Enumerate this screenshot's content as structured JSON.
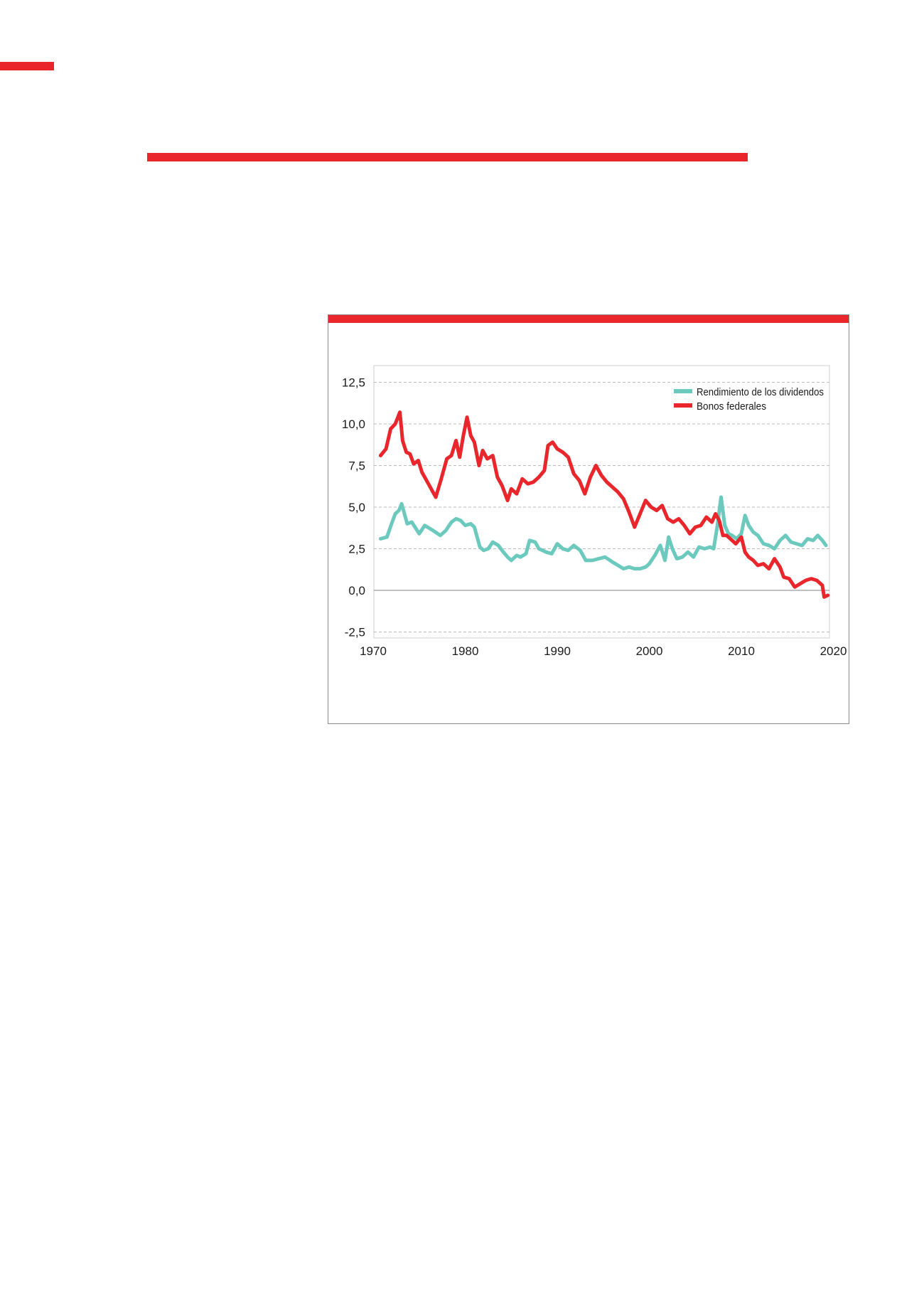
{
  "colors": {
    "accent": "#e8262b",
    "dividend": "#6cc9bd",
    "bonds": "#e8262b",
    "grid": "#bbbbbb"
  },
  "chart_data": {
    "type": "line",
    "title": "",
    "xlabel": "",
    "ylabel": "",
    "xlim": [
      1970,
      2020
    ],
    "ylim": [
      -2.5,
      12.5
    ],
    "x_ticks": [
      "1970",
      "1980",
      "1990",
      "2000",
      "2010",
      "2020"
    ],
    "y_ticks": [
      "12,5",
      "10,0",
      "7,5",
      "5,0",
      "2,5",
      "0,0",
      "-2,5"
    ],
    "grid": "horizontal dashed",
    "legend_position": "top-right",
    "series": [
      {
        "name": "Rendimiento de los dividendos",
        "x": [
          1970.8,
          1971.5,
          1972.0,
          1972.4,
          1972.8,
          1973.1,
          1973.7,
          1974.2,
          1975.0,
          1975.6,
          1976.5,
          1977.3,
          1977.9,
          1978.5,
          1979.0,
          1979.5,
          1980.0,
          1980.6,
          1981.0,
          1981.6,
          1982.0,
          1982.5,
          1983.0,
          1983.6,
          1984.0,
          1984.6,
          1985.0,
          1985.6,
          1986.0,
          1986.6,
          1987.0,
          1987.6,
          1988.0,
          1988.8,
          1989.4,
          1990.0,
          1990.6,
          1991.2,
          1991.8,
          1992.5,
          1993.1,
          1993.8,
          1994.5,
          1995.2,
          1996.0,
          1996.6,
          1997.2,
          1997.8,
          1998.4,
          1999.0,
          1999.6,
          2000.0,
          2000.6,
          2001.2,
          2001.7,
          2002.1,
          2002.5,
          2003.0,
          2003.6,
          2004.2,
          2004.8,
          2005.4,
          2006.0,
          2006.6,
          2007.0,
          2007.4,
          2007.8,
          2008.2,
          2008.6,
          2009.0,
          2009.5,
          2010.0,
          2010.4,
          2010.8,
          2011.3,
          2011.8,
          2012.4,
          2013.0,
          2013.6,
          2014.2,
          2014.8,
          2015.4,
          2016.0,
          2016.6,
          2017.2,
          2017.8,
          2018.3,
          2018.8,
          2019.2
        ],
        "values": [
          3.1,
          3.2,
          4.0,
          4.6,
          4.8,
          5.2,
          4.0,
          4.1,
          3.4,
          3.9,
          3.6,
          3.3,
          3.6,
          4.1,
          4.3,
          4.2,
          3.9,
          4.0,
          3.8,
          2.6,
          2.4,
          2.5,
          2.9,
          2.7,
          2.4,
          2.0,
          1.8,
          2.1,
          2.0,
          2.2,
          3.0,
          2.9,
          2.5,
          2.3,
          2.2,
          2.8,
          2.5,
          2.4,
          2.7,
          2.4,
          1.8,
          1.8,
          1.9,
          2.0,
          1.7,
          1.5,
          1.3,
          1.4,
          1.3,
          1.3,
          1.4,
          1.6,
          2.1,
          2.7,
          1.8,
          3.2,
          2.5,
          1.9,
          2.0,
          2.3,
          2.0,
          2.6,
          2.5,
          2.6,
          2.5,
          3.9,
          5.6,
          3.9,
          3.4,
          3.3,
          3.1,
          3.4,
          4.5,
          3.9,
          3.5,
          3.3,
          2.8,
          2.7,
          2.5,
          3.0,
          3.3,
          2.9,
          2.8,
          2.7,
          3.1,
          3.0,
          3.3,
          3.0,
          2.7
        ]
      },
      {
        "name": "Bonos federales",
        "x": [
          1970.8,
          1971.4,
          1971.9,
          1972.4,
          1972.9,
          1973.2,
          1973.6,
          1974.0,
          1974.4,
          1974.9,
          1975.3,
          1976.0,
          1976.8,
          1977.4,
          1978.0,
          1978.5,
          1979.0,
          1979.4,
          1979.8,
          1980.2,
          1980.6,
          1981.0,
          1981.5,
          1981.9,
          1982.4,
          1983.0,
          1983.5,
          1984.0,
          1984.6,
          1985.0,
          1985.6,
          1986.2,
          1986.8,
          1987.4,
          1988.0,
          1988.6,
          1989.0,
          1989.5,
          1990.0,
          1990.6,
          1991.2,
          1991.8,
          1992.4,
          1993.0,
          1993.6,
          1994.2,
          1994.8,
          1995.4,
          1996.0,
          1996.6,
          1997.2,
          1997.8,
          1998.4,
          1999.0,
          1999.6,
          2000.2,
          2000.8,
          2001.4,
          2002.0,
          2002.6,
          2003.2,
          2003.8,
          2004.4,
          2005.0,
          2005.6,
          2006.2,
          2006.8,
          2007.2,
          2007.6,
          2008.0,
          2008.4,
          2008.8,
          2009.4,
          2010.0,
          2010.4,
          2010.8,
          2011.3,
          2011.8,
          2012.4,
          2013.0,
          2013.6,
          2014.2,
          2014.6,
          2015.2,
          2015.8,
          2016.4,
          2017.0,
          2017.6,
          2018.2,
          2018.8,
          2019.0,
          2019.4
        ],
        "values": [
          8.1,
          8.5,
          9.7,
          10.0,
          10.7,
          9.0,
          8.3,
          8.2,
          7.6,
          7.8,
          7.1,
          6.4,
          5.6,
          6.7,
          7.9,
          8.1,
          9.0,
          8.0,
          9.3,
          10.4,
          9.3,
          8.9,
          7.5,
          8.4,
          7.9,
          8.1,
          6.8,
          6.3,
          5.4,
          6.1,
          5.8,
          6.7,
          6.4,
          6.5,
          6.8,
          7.2,
          8.7,
          8.9,
          8.5,
          8.3,
          8.0,
          7.0,
          6.6,
          5.8,
          6.8,
          7.5,
          6.9,
          6.5,
          6.2,
          5.9,
          5.5,
          4.7,
          3.8,
          4.6,
          5.4,
          5.0,
          4.8,
          5.1,
          4.3,
          4.1,
          4.3,
          3.9,
          3.4,
          3.8,
          3.9,
          4.4,
          4.1,
          4.6,
          4.2,
          3.3,
          3.3,
          3.1,
          2.8,
          3.2,
          2.3,
          2.0,
          1.8,
          1.5,
          1.6,
          1.3,
          1.9,
          1.4,
          0.8,
          0.7,
          0.2,
          0.4,
          0.6,
          0.7,
          0.6,
          0.3,
          -0.4,
          -0.3
        ]
      }
    ]
  }
}
